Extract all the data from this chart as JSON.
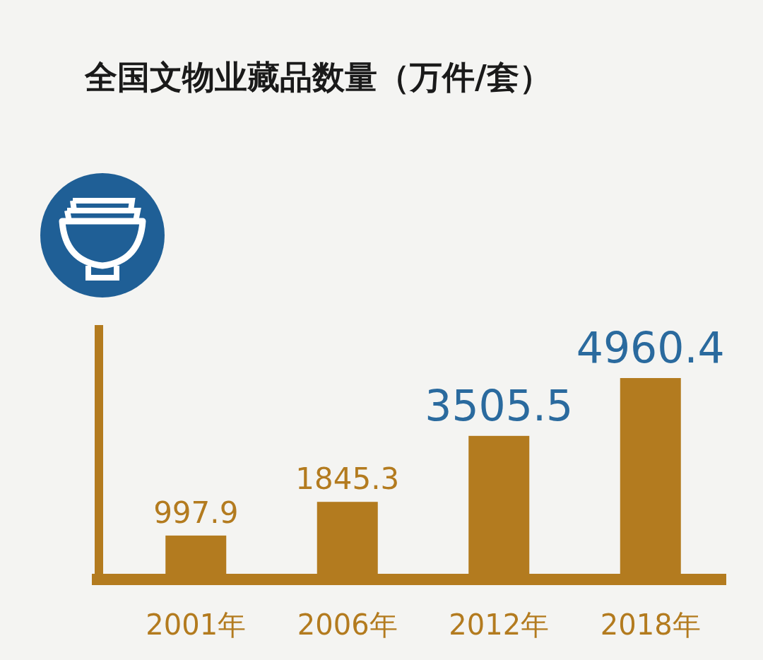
{
  "chart_data": {
    "type": "bar",
    "title": "全国文物业藏品数量（万件/套）",
    "categories": [
      "2001年",
      "2006年",
      "2012年",
      "2018年"
    ],
    "values": [
      997.9,
      1845.3,
      3505.5,
      4960.4
    ],
    "color": "#b37b1f",
    "data_labels": true
  }
}
